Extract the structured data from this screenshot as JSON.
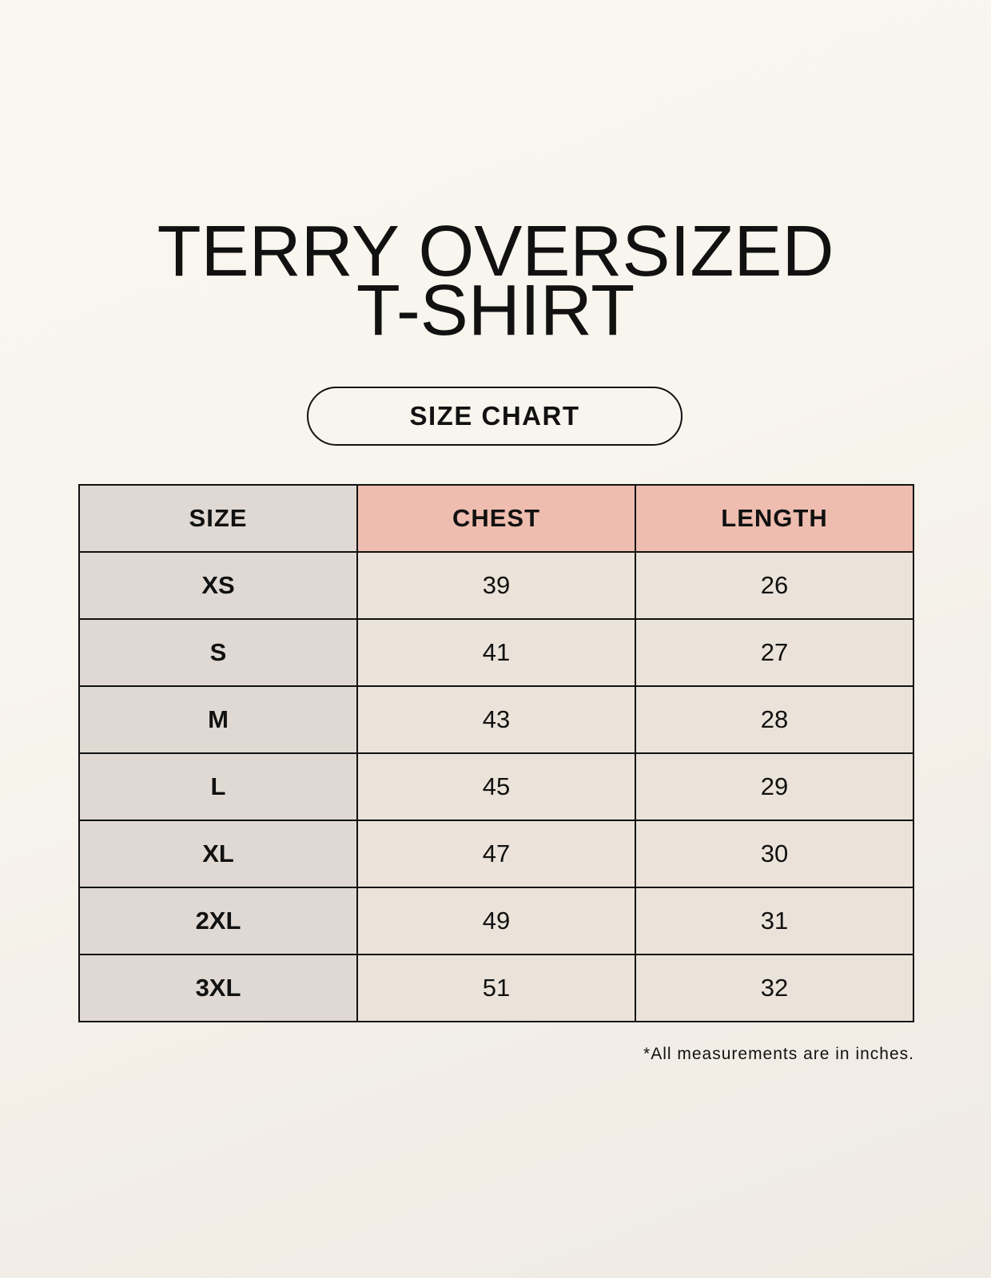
{
  "title": {
    "line1": "TERRY OVERSIZED",
    "line2": "T-SHIRT"
  },
  "badge": "SIZE CHART",
  "table": {
    "headers": [
      "SIZE",
      "CHEST",
      "LENGTH"
    ],
    "rows": [
      [
        "XS",
        "39",
        "26"
      ],
      [
        "S",
        "41",
        "27"
      ],
      [
        "M",
        "43",
        "28"
      ],
      [
        "L",
        "45",
        "29"
      ],
      [
        "XL",
        "47",
        "30"
      ],
      [
        "2XL",
        "49",
        "31"
      ],
      [
        "3XL",
        "51",
        "32"
      ]
    ]
  },
  "footnote": "*All measurements are in inches.",
  "colors": {
    "size_column": "#e0d9d3",
    "header_accent": "#eebdaf",
    "cell": "#ebe3d9"
  }
}
